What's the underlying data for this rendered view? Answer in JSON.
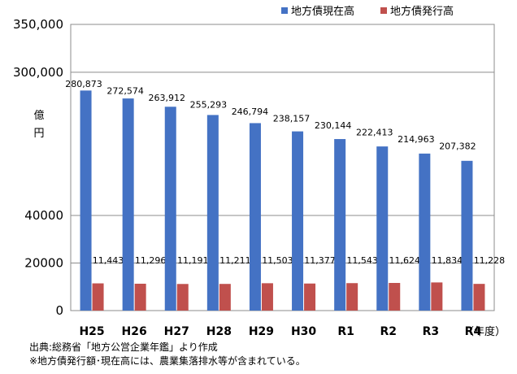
{
  "chart_data": {
    "type": "bar",
    "categories": [
      "H25",
      "H26",
      "H27",
      "H28",
      "H29",
      "H30",
      "R1",
      "R2",
      "R3",
      "R4"
    ],
    "series": [
      {
        "name": "地方債現在高",
        "color": "#4472C4",
        "values": [
          280873,
          272574,
          263912,
          255293,
          246794,
          238157,
          230144,
          222413,
          214963,
          207382
        ],
        "labels": [
          "280,873",
          "272,574",
          "263,912",
          "255,293",
          "246,794",
          "238,157",
          "230,144",
          "222,413",
          "214,963",
          "207,382"
        ]
      },
      {
        "name": "地方債発行高",
        "color": "#C0504D",
        "values": [
          11443,
          11296,
          11191,
          11211,
          11503,
          11377,
          11543,
          11624,
          11834,
          11228
        ],
        "labels": [
          "11,443",
          "11,296",
          "11,191",
          "11,211",
          "11,503",
          "11,377",
          "11,543",
          "11,624",
          "11,834",
          "11,228"
        ]
      }
    ],
    "y_axis": {
      "scale": "broken",
      "segments": [
        {
          "range": [
            0,
            60000
          ]
        },
        {
          "range": [
            200000,
            350000
          ]
        }
      ],
      "tick_labels": [
        "0",
        "20000",
        "40000",
        "300,000",
        "350,000"
      ]
    },
    "ylabel": "億円",
    "x_unit_label": "（年度）",
    "grid": true,
    "legend": "top-right"
  },
  "notes": {
    "source": "出典:総務省「地方公営企業年鑑」より作成",
    "remark": "※地方債発行額･現在高には、農業集落排水等が含まれている。"
  }
}
